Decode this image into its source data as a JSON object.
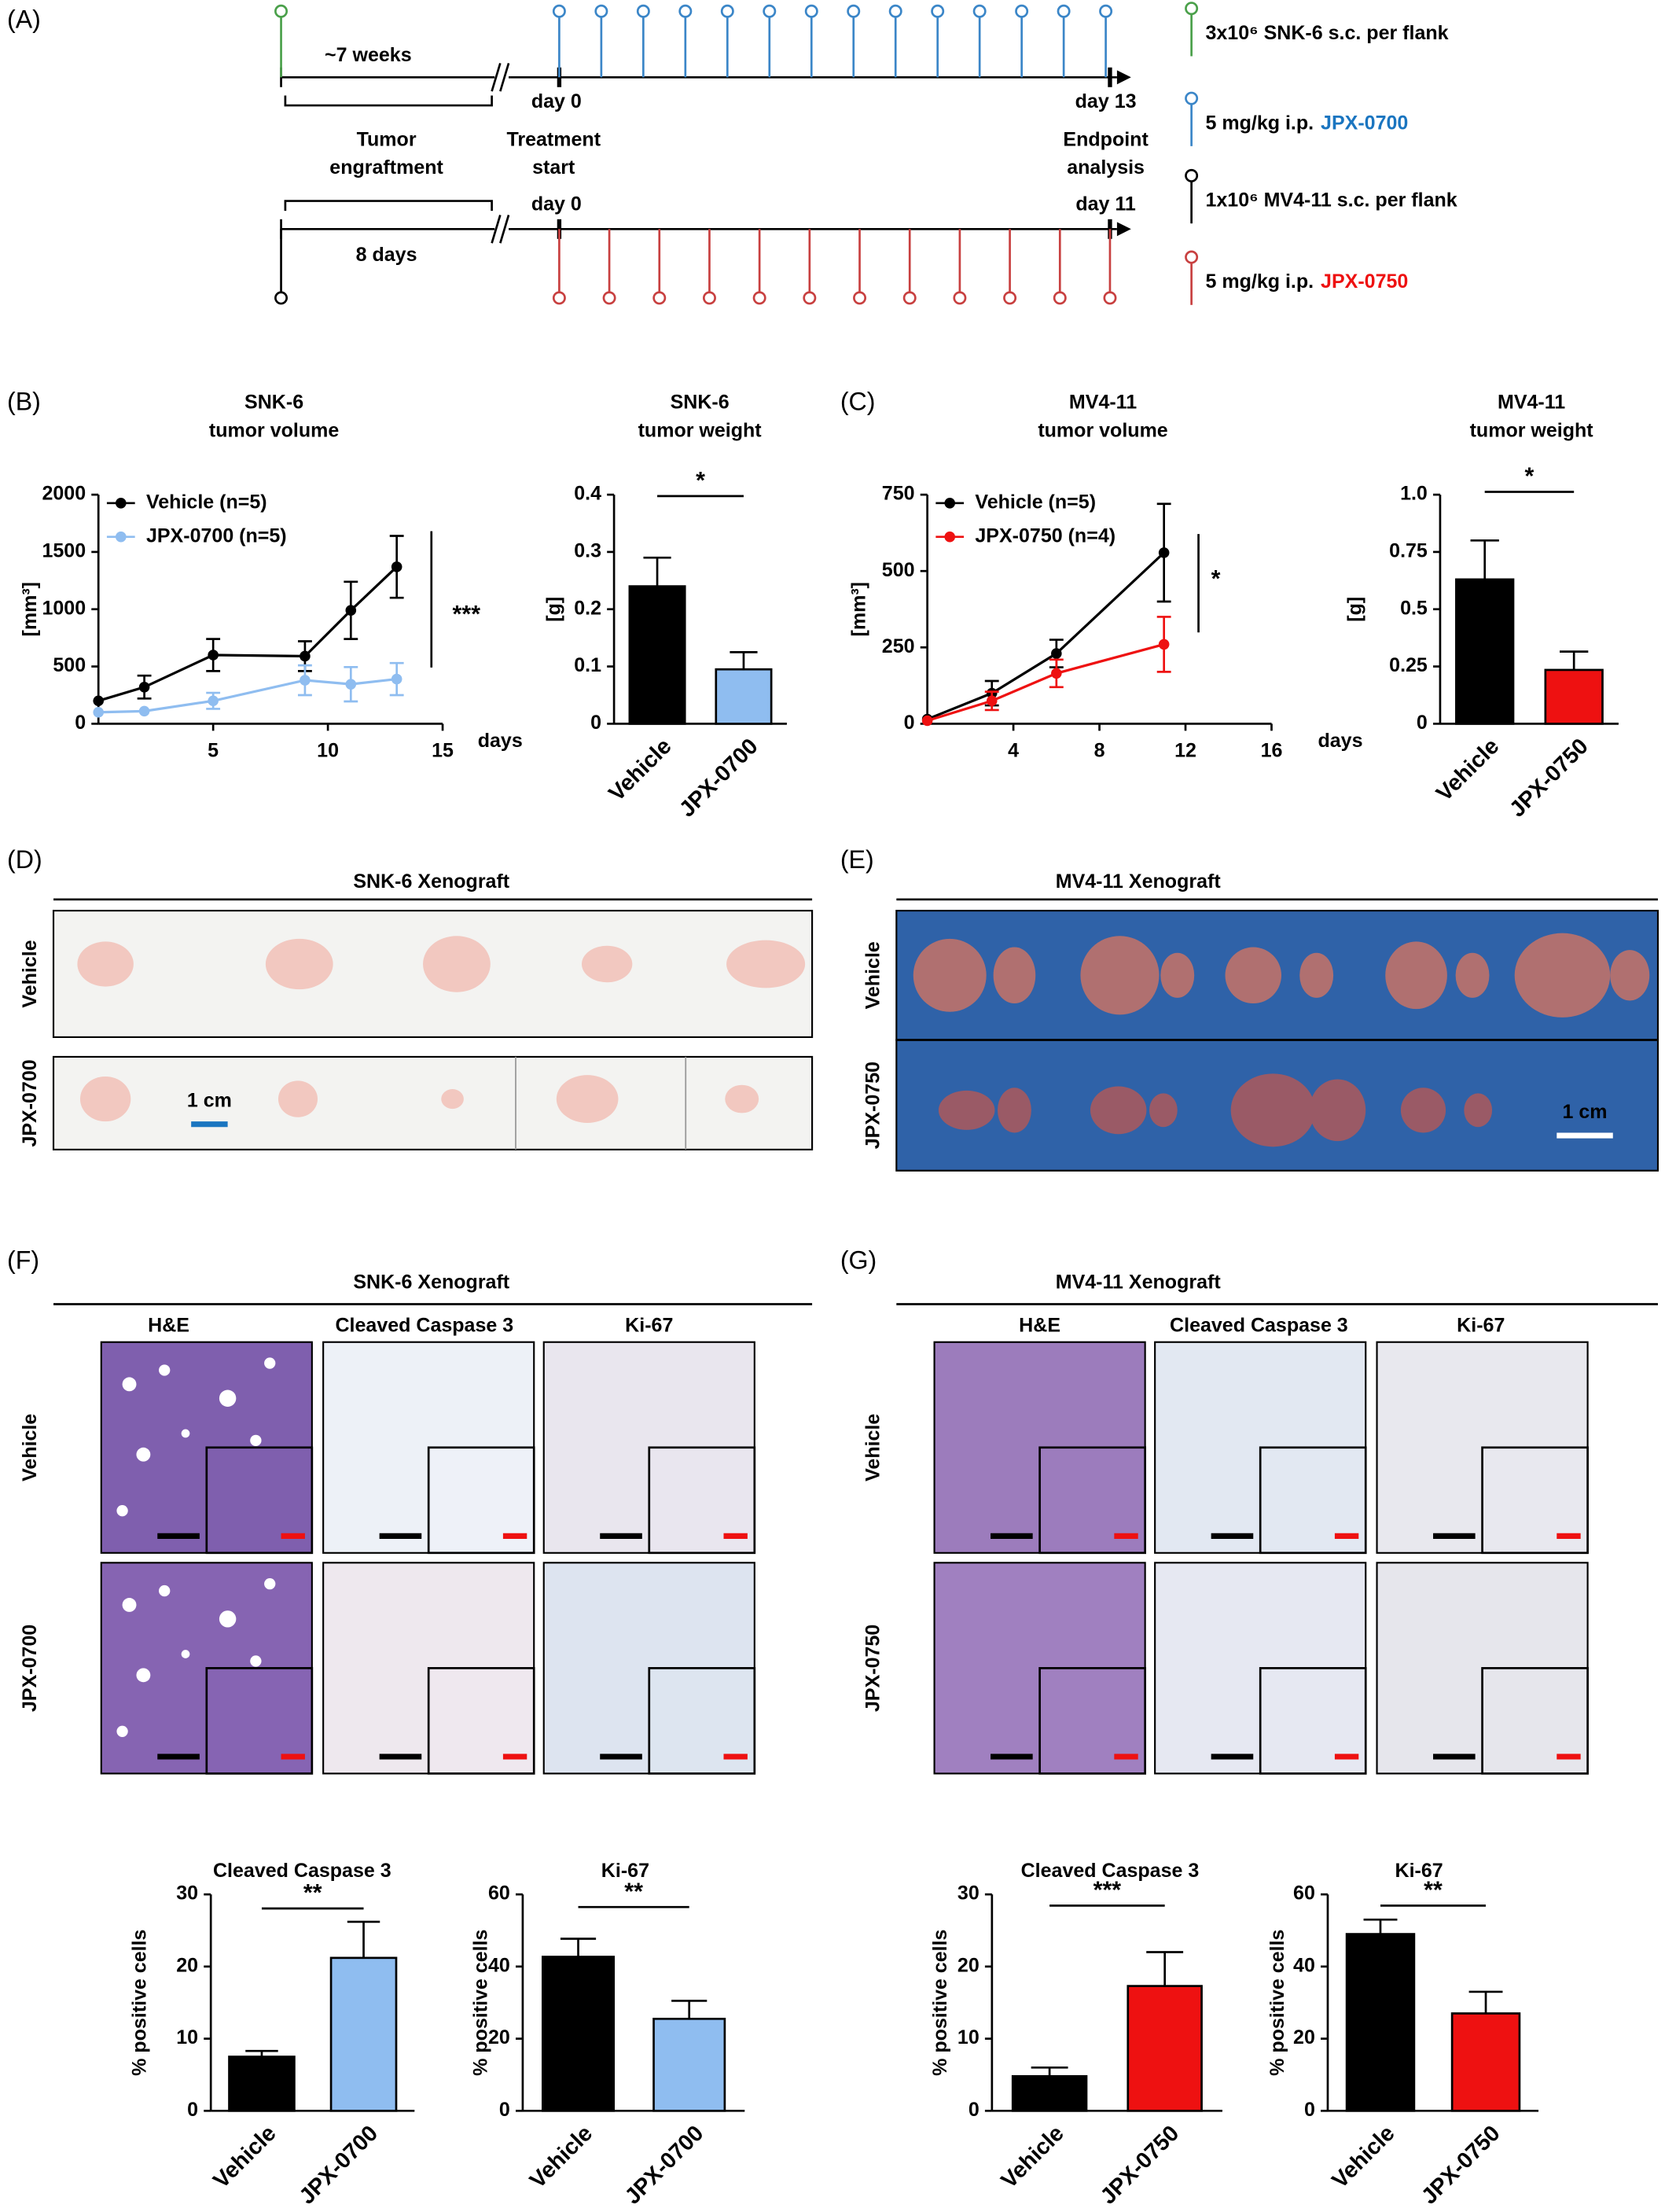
{
  "panel_labels": [
    "(A)",
    "(B)",
    "(C)",
    "(D)",
    "(E)",
    "(F)",
    "(G)"
  ],
  "timeline": {
    "phase1": "~7 weeks",
    "engraftment": [
      "Tumor",
      "engraftment"
    ],
    "treatment": [
      "Treatment",
      "start"
    ],
    "top_start": "day 0",
    "top_end": "day 13",
    "endpoint": [
      "Endpoint",
      "analysis"
    ],
    "bottom_start": "day 0",
    "bottom_end": "day 11",
    "phase2": "8 days",
    "legend": [
      {
        "text": "3x10⁶ SNK-6 s.c. per flank",
        "color": "#4aa04a"
      },
      {
        "text": "5 mg/kg i.p.",
        "drug": "JPX-0700",
        "color": "#3b86c8",
        "drug_color": "#1a75c0"
      },
      {
        "text": "1x10⁶ MV4-11 s.c. per flank",
        "color": "#000000"
      },
      {
        "text": "5 mg/kg i.p.",
        "drug": "JPX-0750",
        "color": "#c84040",
        "drug_color": "#ee1111"
      }
    ]
  },
  "chart_data": [
    {
      "type": "line",
      "title": [
        "SNK-6",
        "tumor volume"
      ],
      "ylabel": "[mm³]",
      "xlabel": "days",
      "xlim": [
        0,
        15
      ],
      "xticks": [
        5,
        10,
        15
      ],
      "ylim": [
        0,
        2000
      ],
      "yticks": [
        0,
        500,
        1000,
        1500,
        2000
      ],
      "series": [
        {
          "name": "Vehicle (n=5)",
          "color": "#000000",
          "x": [
            0,
            2,
            5,
            9,
            11,
            13
          ],
          "values": [
            200,
            320,
            600,
            590,
            990,
            1370
          ],
          "errors": [
            null,
            100,
            140,
            130,
            250,
            270
          ]
        },
        {
          "name": "JPX-0700 (n=5)",
          "color": "#8fbdf0",
          "x": [
            0,
            2,
            5,
            9,
            11,
            13
          ],
          "values": [
            100,
            110,
            200,
            380,
            345,
            390
          ],
          "errors": [
            null,
            null,
            70,
            130,
            150,
            140
          ]
        }
      ],
      "annotation": "***"
    },
    {
      "type": "bar",
      "title": [
        "SNK-6",
        "tumor weight"
      ],
      "ylabel": "[g]",
      "categories": [
        "Vehicle",
        "JPX-0700"
      ],
      "values": [
        0.24,
        0.095
      ],
      "errors": [
        0.05,
        0.03
      ],
      "colors": [
        "#000000",
        "#8fbdf0"
      ],
      "label_colors": [
        "#000000",
        "#1a75c0"
      ],
      "ylim": [
        0,
        0.4
      ],
      "yticks": [
        0,
        0.1,
        0.2,
        0.3,
        0.4
      ],
      "annotation": "*"
    },
    {
      "type": "line",
      "title": [
        "MV4-11",
        "tumor volume"
      ],
      "ylabel": "[mm³]",
      "xlabel": "days",
      "xlim": [
        0,
        16
      ],
      "xticks": [
        4,
        8,
        12,
        16
      ],
      "ylim": [
        0,
        750
      ],
      "yticks": [
        0,
        250,
        500,
        750
      ],
      "series": [
        {
          "name": "Vehicle (n=5)",
          "color": "#000000",
          "x": [
            0,
            3,
            6,
            11
          ],
          "values": [
            15,
            100,
            230,
            560
          ],
          "errors": [
            null,
            40,
            45,
            160
          ]
        },
        {
          "name": "JPX-0750 (n=4)",
          "color": "#ee1111",
          "x": [
            0,
            3,
            6,
            11
          ],
          "values": [
            10,
            75,
            165,
            260
          ],
          "errors": [
            null,
            30,
            45,
            90
          ]
        }
      ],
      "annotation": "*"
    },
    {
      "type": "bar",
      "title": [
        "MV4-11",
        "tumor weight"
      ],
      "ylabel": "[g]",
      "categories": [
        "Vehicle",
        "JPX-0750"
      ],
      "values": [
        0.63,
        0.235
      ],
      "errors": [
        0.17,
        0.08
      ],
      "colors": [
        "#000000",
        "#ee1111"
      ],
      "label_colors": [
        "#000000",
        "#ee1111"
      ],
      "ylim": [
        0,
        1.0
      ],
      "yticks": [
        0,
        0.25,
        0.5,
        0.75,
        {
          "value": 1.0,
          "label": "1.0"
        }
      ],
      "annotation": "*"
    },
    {
      "type": "bar",
      "title": [
        "Cleaved Caspase 3"
      ],
      "ylabel": "% positive cells",
      "categories": [
        "Vehicle",
        "JPX-0700"
      ],
      "values": [
        7.5,
        21.2
      ],
      "errors": [
        0.8,
        5
      ],
      "colors": [
        "#000000",
        "#8fbdf0"
      ],
      "label_colors": [
        "#000000",
        "#1a75c0"
      ],
      "ylim": [
        0,
        30
      ],
      "yticks": [
        0,
        10,
        20,
        30
      ],
      "annotation": "**"
    },
    {
      "type": "bar",
      "title": [
        "Ki-67"
      ],
      "ylabel": "% positive cells",
      "categories": [
        "Vehicle",
        "JPX-0700"
      ],
      "values": [
        42.7,
        25.5
      ],
      "errors": [
        5,
        5
      ],
      "colors": [
        "#000000",
        "#8fbdf0"
      ],
      "label_colors": [
        "#000000",
        "#1a75c0"
      ],
      "ylim": [
        0,
        60
      ],
      "yticks": [
        0,
        20,
        40,
        60
      ],
      "annotation": "**"
    },
    {
      "type": "bar",
      "title": [
        "Cleaved Caspase 3"
      ],
      "ylabel": "% positive cells",
      "categories": [
        "Vehicle",
        "JPX-0750"
      ],
      "values": [
        4.8,
        17.3
      ],
      "errors": [
        1.2,
        4.7
      ],
      "colors": [
        "#000000",
        "#ee1111"
      ],
      "label_colors": [
        "#000000",
        "#ee1111"
      ],
      "ylim": [
        0,
        30
      ],
      "yticks": [
        0,
        10,
        20,
        30
      ],
      "annotation": "***"
    },
    {
      "type": "bar",
      "title": [
        "Ki-67"
      ],
      "ylabel": "% positive cells",
      "categories": [
        "Vehicle",
        "JPX-0750"
      ],
      "values": [
        49,
        27
      ],
      "errors": [
        4,
        6
      ],
      "colors": [
        "#000000",
        "#ee1111"
      ],
      "label_colors": [
        "#000000",
        "#ee1111"
      ],
      "ylim": [
        0,
        60
      ],
      "yticks": [
        0,
        20,
        40,
        60
      ],
      "annotation": "**"
    }
  ],
  "photos": [
    {
      "title": "SNK-6 Xenograft",
      "rows": [
        "Vehicle",
        "JPX-0700"
      ],
      "row_colors": [
        "#000000",
        "#1a75c0"
      ],
      "scale": "1 cm"
    },
    {
      "title": "MV4-11 Xenograft",
      "rows": [
        "Vehicle",
        "JPX-0750"
      ],
      "row_colors": [
        "#000000",
        "#ee1111"
      ],
      "scale": "1 cm"
    }
  ],
  "histology": [
    {
      "title": "SNK-6 Xenograft",
      "columns": [
        "H&E",
        "Cleaved Caspase 3",
        "Ki-67"
      ],
      "rows": [
        "Vehicle",
        "JPX-0700"
      ],
      "row_colors": [
        "#000000",
        "#1a75c0"
      ]
    },
    {
      "title": "MV4-11 Xenograft",
      "columns": [
        "H&E",
        "Cleaved Caspase 3",
        "Ki-67"
      ],
      "rows": [
        "Vehicle",
        "JPX-0750"
      ],
      "row_colors": [
        "#000000",
        "#ee1111"
      ]
    }
  ]
}
